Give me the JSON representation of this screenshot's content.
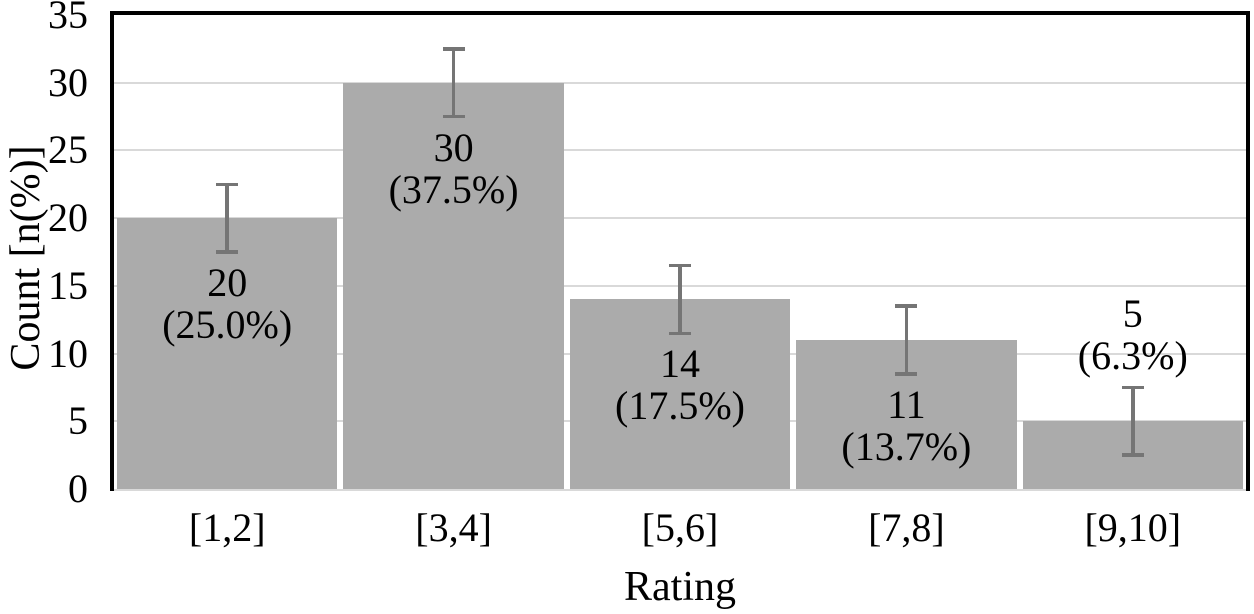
{
  "chart_data": {
    "type": "bar",
    "title": "",
    "xlabel": "Rating",
    "ylabel": "Count [n(%)]",
    "categories": [
      "[1,2]",
      "[3,4]",
      "[5,6]",
      "[7,8]",
      "[9,10]"
    ],
    "values": [
      20,
      30,
      14,
      11,
      5
    ],
    "percent_labels": [
      "(25.0%)",
      "(37.5%)",
      "(17.5%)",
      "(13.7%)",
      "(6.3%)"
    ],
    "error_bars": {
      "type": "symmetric",
      "value": 2.5
    },
    "ylim": [
      0,
      35
    ],
    "yticks": [
      0,
      5,
      10,
      15,
      20,
      25,
      30,
      35
    ],
    "grid": true,
    "legend": "none",
    "bar_label_placement": [
      "below-error-inside",
      "below-error-inside",
      "below-error-inside",
      "below-error-inside",
      "above-error"
    ],
    "colors": {
      "bar_fill": "#ababab",
      "error_bar": "#757575",
      "gridline": "#d9d9d9",
      "axis_frame": "#000000",
      "baseline": "#d9d9d9",
      "text": "#000000"
    }
  }
}
